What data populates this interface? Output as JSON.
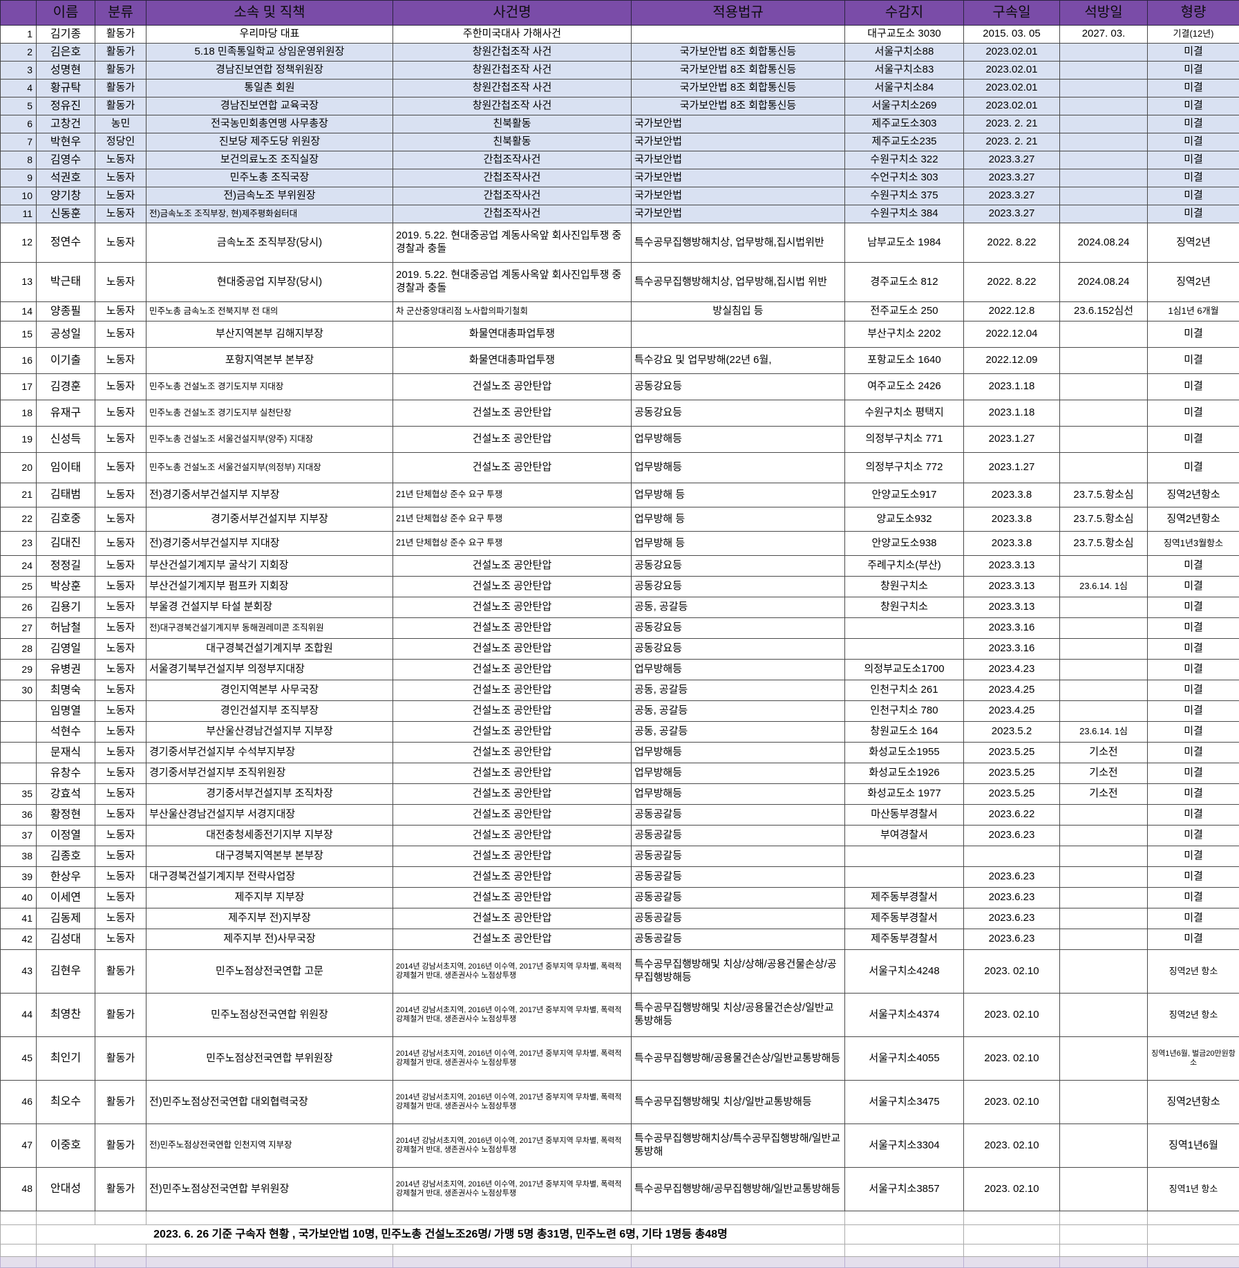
{
  "header": {
    "columns": [
      "이름",
      "분류",
      "소속 및 직책",
      "사건명",
      "적용법규",
      "수감지",
      "구속일",
      "석방일",
      "형량"
    ]
  },
  "rows": [
    {
      "hl": false,
      "cells": [
        "1",
        "김기종",
        "활동가",
        "우리마당 대표",
        "주한미국대사 가해사건",
        "",
        "대구교도소 3030",
        "2015. 03. 05",
        "2027. 03.",
        "기결(12년)"
      ]
    },
    {
      "hl": true,
      "cells": [
        "2",
        "김은호",
        "활동가",
        "5.18 민족통일학교 상임운영위원장",
        "창원간첩조작 사건",
        "국가보안법 8조 회합통신등",
        "서울구치소88",
        "2023.02.01",
        "",
        "미결"
      ]
    },
    {
      "hl": true,
      "cells": [
        "3",
        "성명현",
        "활동가",
        "경남진보연합 정책위원장",
        "창원간첩조작 사건",
        "국가보안법 8조 회합통신등",
        "서울구치소83",
        "2023.02.01",
        "",
        "미결"
      ]
    },
    {
      "hl": true,
      "cells": [
        "4",
        "황규탁",
        "활동가",
        "통일촌 회원",
        "창원간첩조작 사건",
        "국가보안법 8조 회합통신등",
        "서울구치소84",
        "2023.02.01",
        "",
        "미결"
      ]
    },
    {
      "hl": true,
      "cells": [
        "5",
        "정유진",
        "활동가",
        "경남진보연합 교육국장",
        "창원간첩조작 사건",
        "국가보안법 8조 회합통신등",
        "서울구치소269",
        "2023.02.01",
        "",
        "미결"
      ]
    },
    {
      "hl": true,
      "cells": [
        "6",
        "고창건",
        "농민",
        "전국농민회총연맹 사무총장",
        "친북활동",
        "국가보안법",
        "제주교도소303",
        "2023. 2. 21",
        "",
        "미결"
      ]
    },
    {
      "hl": true,
      "cells": [
        "7",
        "박현우",
        "정당인",
        "진보당 제주도당 위원장",
        "친북활동",
        "국가보안법",
        "제주교도소235",
        "2023. 2. 21",
        "",
        "미결"
      ]
    },
    {
      "hl": true,
      "cells": [
        "8",
        "김영수",
        "노동자",
        "보건의료노조 조직실장",
        "간첩조작사건",
        "국가보안법",
        "수원구치소 322",
        "2023.3.27",
        "",
        "미결"
      ]
    },
    {
      "hl": true,
      "cells": [
        "9",
        "석권호",
        "노동자",
        "민주노총 조직국장",
        "간첩조작사건",
        "국가보안법",
        "수언구치소 303",
        "2023.3.27",
        "",
        "미결"
      ]
    },
    {
      "hl": true,
      "cells": [
        "10",
        "양기창",
        "노동자",
        "전)금속노조 부위원장",
        "간첩조작사건",
        "국가보안법",
        "수원구치소 375",
        "2023.3.27",
        "",
        "미결"
      ]
    },
    {
      "hl": true,
      "cells": [
        "11",
        "신동훈",
        "노동자",
        "전)금속노조 조직부장, 현)제주평화쉼터대",
        "간첩조작사건",
        "국가보안법",
        "수원구치소 384",
        "2023.3.27",
        "",
        "미결"
      ]
    },
    {
      "hl": false,
      "cells": [
        "12",
        "정연수",
        "노동자",
        "금속노조 조직부장(당시)",
        "2019. 5.22. 현대중공업 계동사옥앞 회사진입투쟁 중 경찰과 충돌",
        "특수공무집행방해치상, 업무방해,집시법위반",
        "남부교도소 1984",
        "2022. 8.22",
        "2024.08.24",
        "징역2년"
      ]
    },
    {
      "hl": false,
      "cells": [
        "13",
        "박근태",
        "노동자",
        "현대중공업 지부장(당시)",
        "2019. 5.22. 현대중공업 계동사옥앞 회사진입투쟁 중 경찰과 충돌",
        "특수공무집행방해치상, 업무방해,집시법 위반",
        "경주교도소 812",
        "2022. 8.22",
        "2024.08.24",
        "징역2년"
      ]
    },
    {
      "hl": false,
      "cells": [
        "14",
        "양종필",
        "노동자",
        "민주노총 금속노조 전북지부 전 대의",
        "차 군산중앙대리점 노사합의파기철회",
        "방실침입 등",
        "전주교도소 250",
        "2022.12.8",
        "23.6.152심선",
        "1심1년 6개월"
      ]
    },
    {
      "hl": false,
      "cells": [
        "15",
        "공성일",
        "노동자",
        "부산지역본부 김해지부장",
        "화물연대총파업투쟁",
        "",
        "부산구치소 2202",
        "2022.12.04",
        "",
        "미결"
      ]
    },
    {
      "hl": false,
      "cells": [
        "16",
        "이기출",
        "노동자",
        "포항지역본부 본부장",
        "화물연대총파업투쟁",
        "특수강요 및 업무방해(22년 6월,",
        "포항교도소 1640",
        "2022.12.09",
        "",
        "미결"
      ]
    },
    {
      "hl": false,
      "cells": [
        "17",
        "김경훈",
        "노동자",
        "민주노총 건설노조 경기도지부 지대장",
        "건설노조 공안탄압",
        "공동강요등",
        "여주교도소 2426",
        "2023.1.18",
        "",
        "미결"
      ]
    },
    {
      "hl": false,
      "cells": [
        "18",
        "유재구",
        "노동자",
        "민주노총 건설노조 경기도지부 실천단장",
        "건설노조 공안탄압",
        "공동강요등",
        "수원구치소 평택지",
        "2023.1.18",
        "",
        "미결"
      ]
    },
    {
      "hl": false,
      "cells": [
        "19",
        "신성득",
        "노동자",
        "민주노총 건설노조 서울건설지부(양주) 지대장",
        "건설노조 공안탄압",
        "업무방해등",
        "의정부구치소 771",
        "2023.1.27",
        "",
        "미결"
      ]
    },
    {
      "hl": false,
      "cells": [
        "20",
        "임이태",
        "노동자",
        "민주노총 건설노조 서울건설지부(의정부) 지대장",
        "건설노조 공안탄압",
        "업무방해등",
        "의정부구치소 772",
        "2023.1.27",
        "",
        "미결"
      ]
    },
    {
      "hl": false,
      "cells": [
        "21",
        "김태범",
        "노동자",
        "전)경기중서부건설지부 지부장",
        "21년 단체협상 준수 요구 투쟁",
        "업무방해 등",
        "안양교도소917",
        "2023.3.8",
        "23.7.5.항소심",
        "징역2년항소"
      ]
    },
    {
      "hl": false,
      "cells": [
        "22",
        "김호중",
        "노동자",
        "경기중서부건설지부 지부장",
        "21년 단체협상 준수 요구 투쟁",
        "업무방해 등",
        "양교도소932",
        "2023.3.8",
        "23.7.5.항소심",
        "징역2년항소"
      ]
    },
    {
      "hl": false,
      "cells": [
        "23",
        "김대진",
        "노동자",
        "전)경기중서부건설지부 지대장",
        "21년 단체협상 준수 요구 투쟁",
        "업무방해 등",
        "안양교도소938",
        "2023.3.8",
        "23.7.5.항소심",
        "징역1년3월항소"
      ]
    },
    {
      "hl": false,
      "cells": [
        "24",
        "정정길",
        "노동자",
        "부산건설기계지부 굴삭기 지회장",
        "건설노조 공안탄압",
        "공동강요등",
        "주례구치소(부산)",
        "2023.3.13",
        "",
        "미결"
      ]
    },
    {
      "hl": false,
      "cells": [
        "25",
        "박상훈",
        "노동자",
        "부산건설기계지부 펌프카 지회장",
        "건설노조 공안탄압",
        "공동강요등",
        "창원구치소",
        "2023.3.13",
        "23.6.14. 1심",
        "미결"
      ]
    },
    {
      "hl": false,
      "cells": [
        "26",
        "김용기",
        "노동자",
        "부울경 건설지부 타설 분회장",
        "건설노조 공안탄압",
        "공동, 공갈등",
        "창원구치소",
        "2023.3.13",
        "",
        "미결"
      ]
    },
    {
      "hl": false,
      "cells": [
        "27",
        "허남철",
        "노동자",
        "전)대구경북건설기계지부 동해권레미콘 조직위원",
        "건설노조 공안탄압",
        "공동강요등",
        "",
        "2023.3.16",
        "",
        "미결"
      ]
    },
    {
      "hl": false,
      "cells": [
        "28",
        "김영일",
        "노동자",
        "대구경북건설기계지부 조합원",
        "건설노조 공안탄압",
        "공동강요등",
        "",
        "2023.3.16",
        "",
        "미결"
      ]
    },
    {
      "hl": false,
      "cells": [
        "29",
        "유병권",
        "노동자",
        "서울경기북부건설지부 의정부지대장",
        "건설노조 공안탄압",
        "업무방해등",
        "의정부교도소1700",
        "2023.4.23",
        "",
        "미결"
      ]
    },
    {
      "hl": false,
      "cells": [
        "30",
        "최명숙",
        "노동자",
        "경인지역본부 사무국장",
        "건설노조 공안탄압",
        "공동, 공갈등",
        "인천구치소 261",
        "2023.4.25",
        "",
        "미결"
      ]
    },
    {
      "hl": false,
      "cells": [
        "",
        "임명열",
        "노동자",
        "경인건설지부 조직부장",
        "건설노조 공안탄압",
        "공동, 공갈등",
        "인천구치소 780",
        "2023.4.25",
        "",
        "미결"
      ]
    },
    {
      "hl": false,
      "cells": [
        "",
        "석현수",
        "노동자",
        "부산울산경남건설지부 지부장",
        "건설노조 공안탄압",
        "공동, 공갈등",
        "창원교도소 164",
        "2023.5.2",
        "23.6.14. 1심",
        "미결"
      ]
    },
    {
      "hl": false,
      "cells": [
        "",
        "문재식",
        "노동자",
        "경기중서부건설지부 수석부지부장",
        "건설노조 공안탄압",
        "업무방해등",
        "화성교도소1955",
        "2023.5.25",
        "기소전",
        "미결"
      ]
    },
    {
      "hl": false,
      "cells": [
        "",
        "유창수",
        "노동자",
        "경기중서부건설지부 조직위원장",
        "건설노조 공안탄압",
        "업무방해등",
        "화성교도소1926",
        "2023.5.25",
        "기소전",
        "미결"
      ]
    },
    {
      "hl": false,
      "cells": [
        "35",
        "강효석",
        "노동자",
        "경기중서부건설지부 조직차장",
        "건설노조 공안탄압",
        "업무방해등",
        "화성교도소 1977",
        "2023.5.25",
        "기소전",
        "미결"
      ]
    },
    {
      "hl": false,
      "cells": [
        "36",
        "황정현",
        "노동자",
        "부산울산경남건설지부 서경지대장",
        "건설노조 공안탄압",
        "공동공갈등",
        "마산동부경찰서",
        "2023.6.22",
        "",
        "미결"
      ]
    },
    {
      "hl": false,
      "cells": [
        "37",
        "이정열",
        "노동자",
        "대전충청세종전기지부 지부장",
        "건설노조 공안탄압",
        "공동공갈등",
        "부여경찰서",
        "2023.6.23",
        "",
        "미결"
      ]
    },
    {
      "hl": false,
      "cells": [
        "38",
        "김종호",
        "노동자",
        "대구경북지역본부 본부장",
        "건설노조 공안탄압",
        "공동공갈등",
        "",
        "",
        "",
        "미결"
      ]
    },
    {
      "hl": false,
      "cells": [
        "39",
        "한상우",
        "노동자",
        "대구경북건설기계지부 전략사업장",
        "건설노조 공안탄압",
        "공동공갈등",
        "",
        "2023.6.23",
        "",
        "미결"
      ]
    },
    {
      "hl": false,
      "cells": [
        "40",
        "이세연",
        "노동자",
        "제주지부 지부장",
        "건설노조 공안탄압",
        "공동공갈등",
        "제주동부경찰서",
        "2023.6.23",
        "",
        "미결"
      ]
    },
    {
      "hl": false,
      "cells": [
        "41",
        "김동제",
        "노동자",
        "제주지부 전)지부장",
        "건설노조 공안탄압",
        "공동공갈등",
        "제주동부경찰서",
        "2023.6.23",
        "",
        "미결"
      ]
    },
    {
      "hl": false,
      "cells": [
        "42",
        "김성대",
        "노동자",
        "제주지부 전)사무국장",
        "건설노조 공안탄압",
        "공동공갈등",
        "제주동부경찰서",
        "2023.6.23",
        "",
        "미결"
      ]
    },
    {
      "hl": false,
      "cells": [
        "43",
        "김현우",
        "활동가",
        "민주노점상전국연합 고문",
        "2014년 강남서초지역, 2016년 이수역, 2017년 중부지역 무차별, 폭력적 강제철거 반대, 생존권사수 노점상투쟁",
        "특수공무집행방해및 치상/상해/공용건물손상/공무집행방해등",
        "서울구치소4248",
        "2023. 02.10",
        "",
        "징역2년 항소"
      ]
    },
    {
      "hl": false,
      "cells": [
        "44",
        "최영찬",
        "활동가",
        "민주노점상전국연합 위원장",
        "2014년 강남서초지역, 2016년 이수역, 2017년 중부지역 무차별, 폭력적 강제철거 반대, 생존권사수 노점상투쟁",
        "특수공무집행방해및 치상/공용물건손상/일반교통방해등",
        "서울구치소4374",
        "2023. 02.10",
        "",
        "징역2년 항소"
      ]
    },
    {
      "hl": false,
      "cells": [
        "45",
        "최인기",
        "활동가",
        "민주노점상전국연합 부위원장",
        "2014년 강남서초지역, 2016년 이수역, 2017년 중부지역 무차별, 폭력적 강제철거 반대, 생존권사수 노점상투쟁",
        "특수공무집행방해/공용물건손상/일반교통방해등",
        "서울구치소4055",
        "2023. 02.10",
        "",
        "징역1년6월, 벌금20만원항소"
      ]
    },
    {
      "hl": false,
      "cells": [
        "46",
        "최오수",
        "활동가",
        "전)민주노점상전국연합 대외협력국장",
        "2014년 강남서초지역, 2016년 이수역, 2017년 중부지역 무차별, 폭력적 강제철거 반대, 생존권사수 노점상투쟁",
        "특수공무집행방해및 치상/일반교통방해등",
        "서울구치소3475",
        "2023. 02.10",
        "",
        "징역2년항소"
      ]
    },
    {
      "hl": false,
      "cells": [
        "47",
        "이중호",
        "활동가",
        "전)민주노점상전국연합 인천지역 지부장",
        "2014년 강남서초지역, 2016년 이수역, 2017년 중부지역 무차별, 폭력적 강제철거 반대, 생존권사수 노점상투쟁",
        "특수공무집행방해치상/특수공무집행방해/일반교통방해",
        "서울구치소3304",
        "2023. 02.10",
        "",
        "징역1년6월"
      ]
    },
    {
      "hl": false,
      "cells": [
        "48",
        "안대성",
        "활동가",
        "전)민주노점상전국연합 부위원장",
        "2014년 강남서초지역, 2016년 이수역, 2017년 중부지역 무차별, 폭력적 강제철거 반대, 생존권사수 노점상투쟁",
        "특수공무집행방해/공무집행방해/일반교통방해등",
        "서울구치소3857",
        "2023. 02.10",
        "",
        "징역1년 항소"
      ]
    }
  ],
  "footer": {
    "summary": "2023. 6. 26 기준 구속자 현황 , 국가보안법 10명, 민주노총 건설노조26명/ 가맹 5명 총31명, 민주노련 6명, 기타 1명등 총48명"
  },
  "colors": {
    "header_bg": "#7A4CA8",
    "band_bg": "#D9E1F2",
    "footer_band_bg": "#E4DFEC",
    "grid": "#4a4a4a"
  }
}
